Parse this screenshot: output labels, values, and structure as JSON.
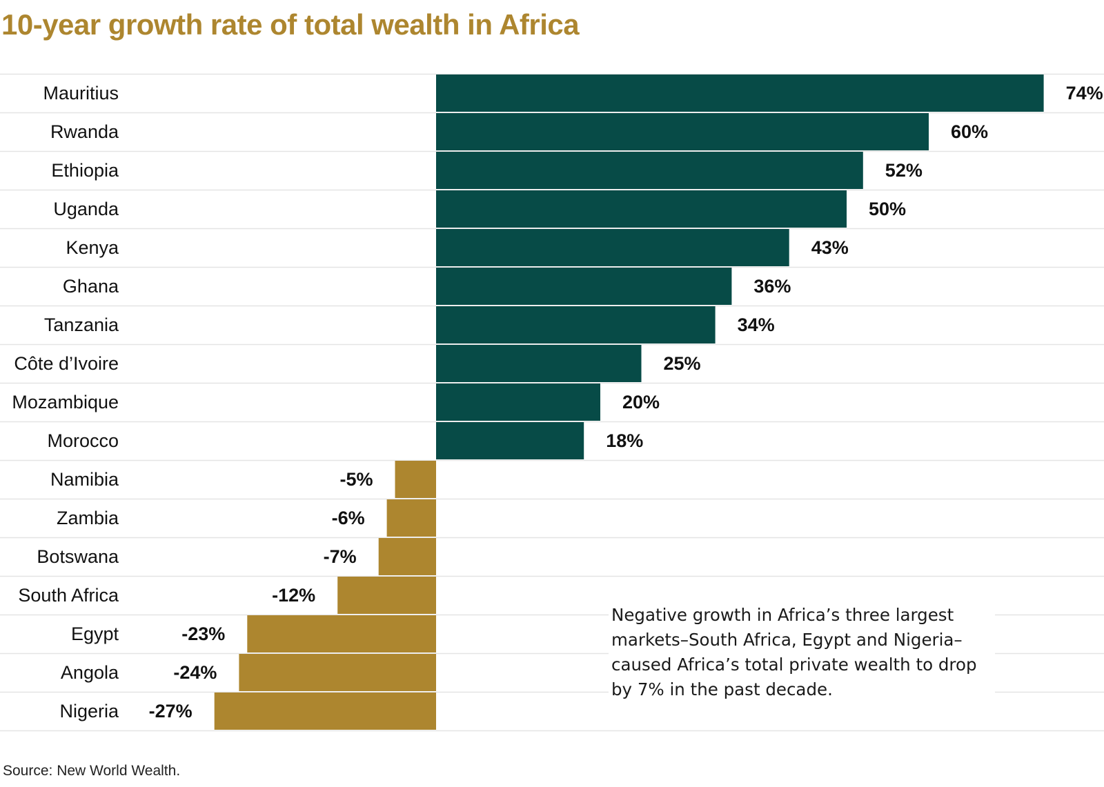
{
  "title": "10-year growth rate of total wealth in Africa",
  "source": "Source: New World Wealth.",
  "annotation": "Negative growth in Africa’s three largest markets–South Africa, Egypt and Nigeria–caused Africa’s total private wealth to drop by 7% in the past decade.",
  "chart_data": {
    "type": "bar",
    "orientation": "horizontal",
    "title": "10-year growth rate of total wealth in Africa",
    "categories": [
      "Mauritius",
      "Rwanda",
      "Ethiopia",
      "Uganda",
      "Kenya",
      "Ghana",
      "Tanzania",
      "Côte d’Ivoire",
      "Mozambique",
      "Morocco",
      "Namibia",
      "Zambia",
      "Botswana",
      "South Africa",
      "Egypt",
      "Angola",
      "Nigeria"
    ],
    "values": [
      74,
      60,
      52,
      50,
      43,
      36,
      34,
      25,
      20,
      18,
      -5,
      -6,
      -7,
      -12,
      -23,
      -24,
      -27
    ],
    "value_labels": [
      "74%",
      "60%",
      "52%",
      "50%",
      "43%",
      "36%",
      "34%",
      "25%",
      "20%",
      "18%",
      "-5%",
      "-6%",
      "-7%",
      "-12%",
      "-23%",
      "-24%",
      "-27%"
    ],
    "unit": "%",
    "xlim": [
      -27,
      74
    ],
    "grid": false,
    "legend": false,
    "colors": {
      "positive": "#074b47",
      "negative": "#ad862f",
      "divider": "#e4e4e4",
      "title": "#ad862f"
    }
  }
}
